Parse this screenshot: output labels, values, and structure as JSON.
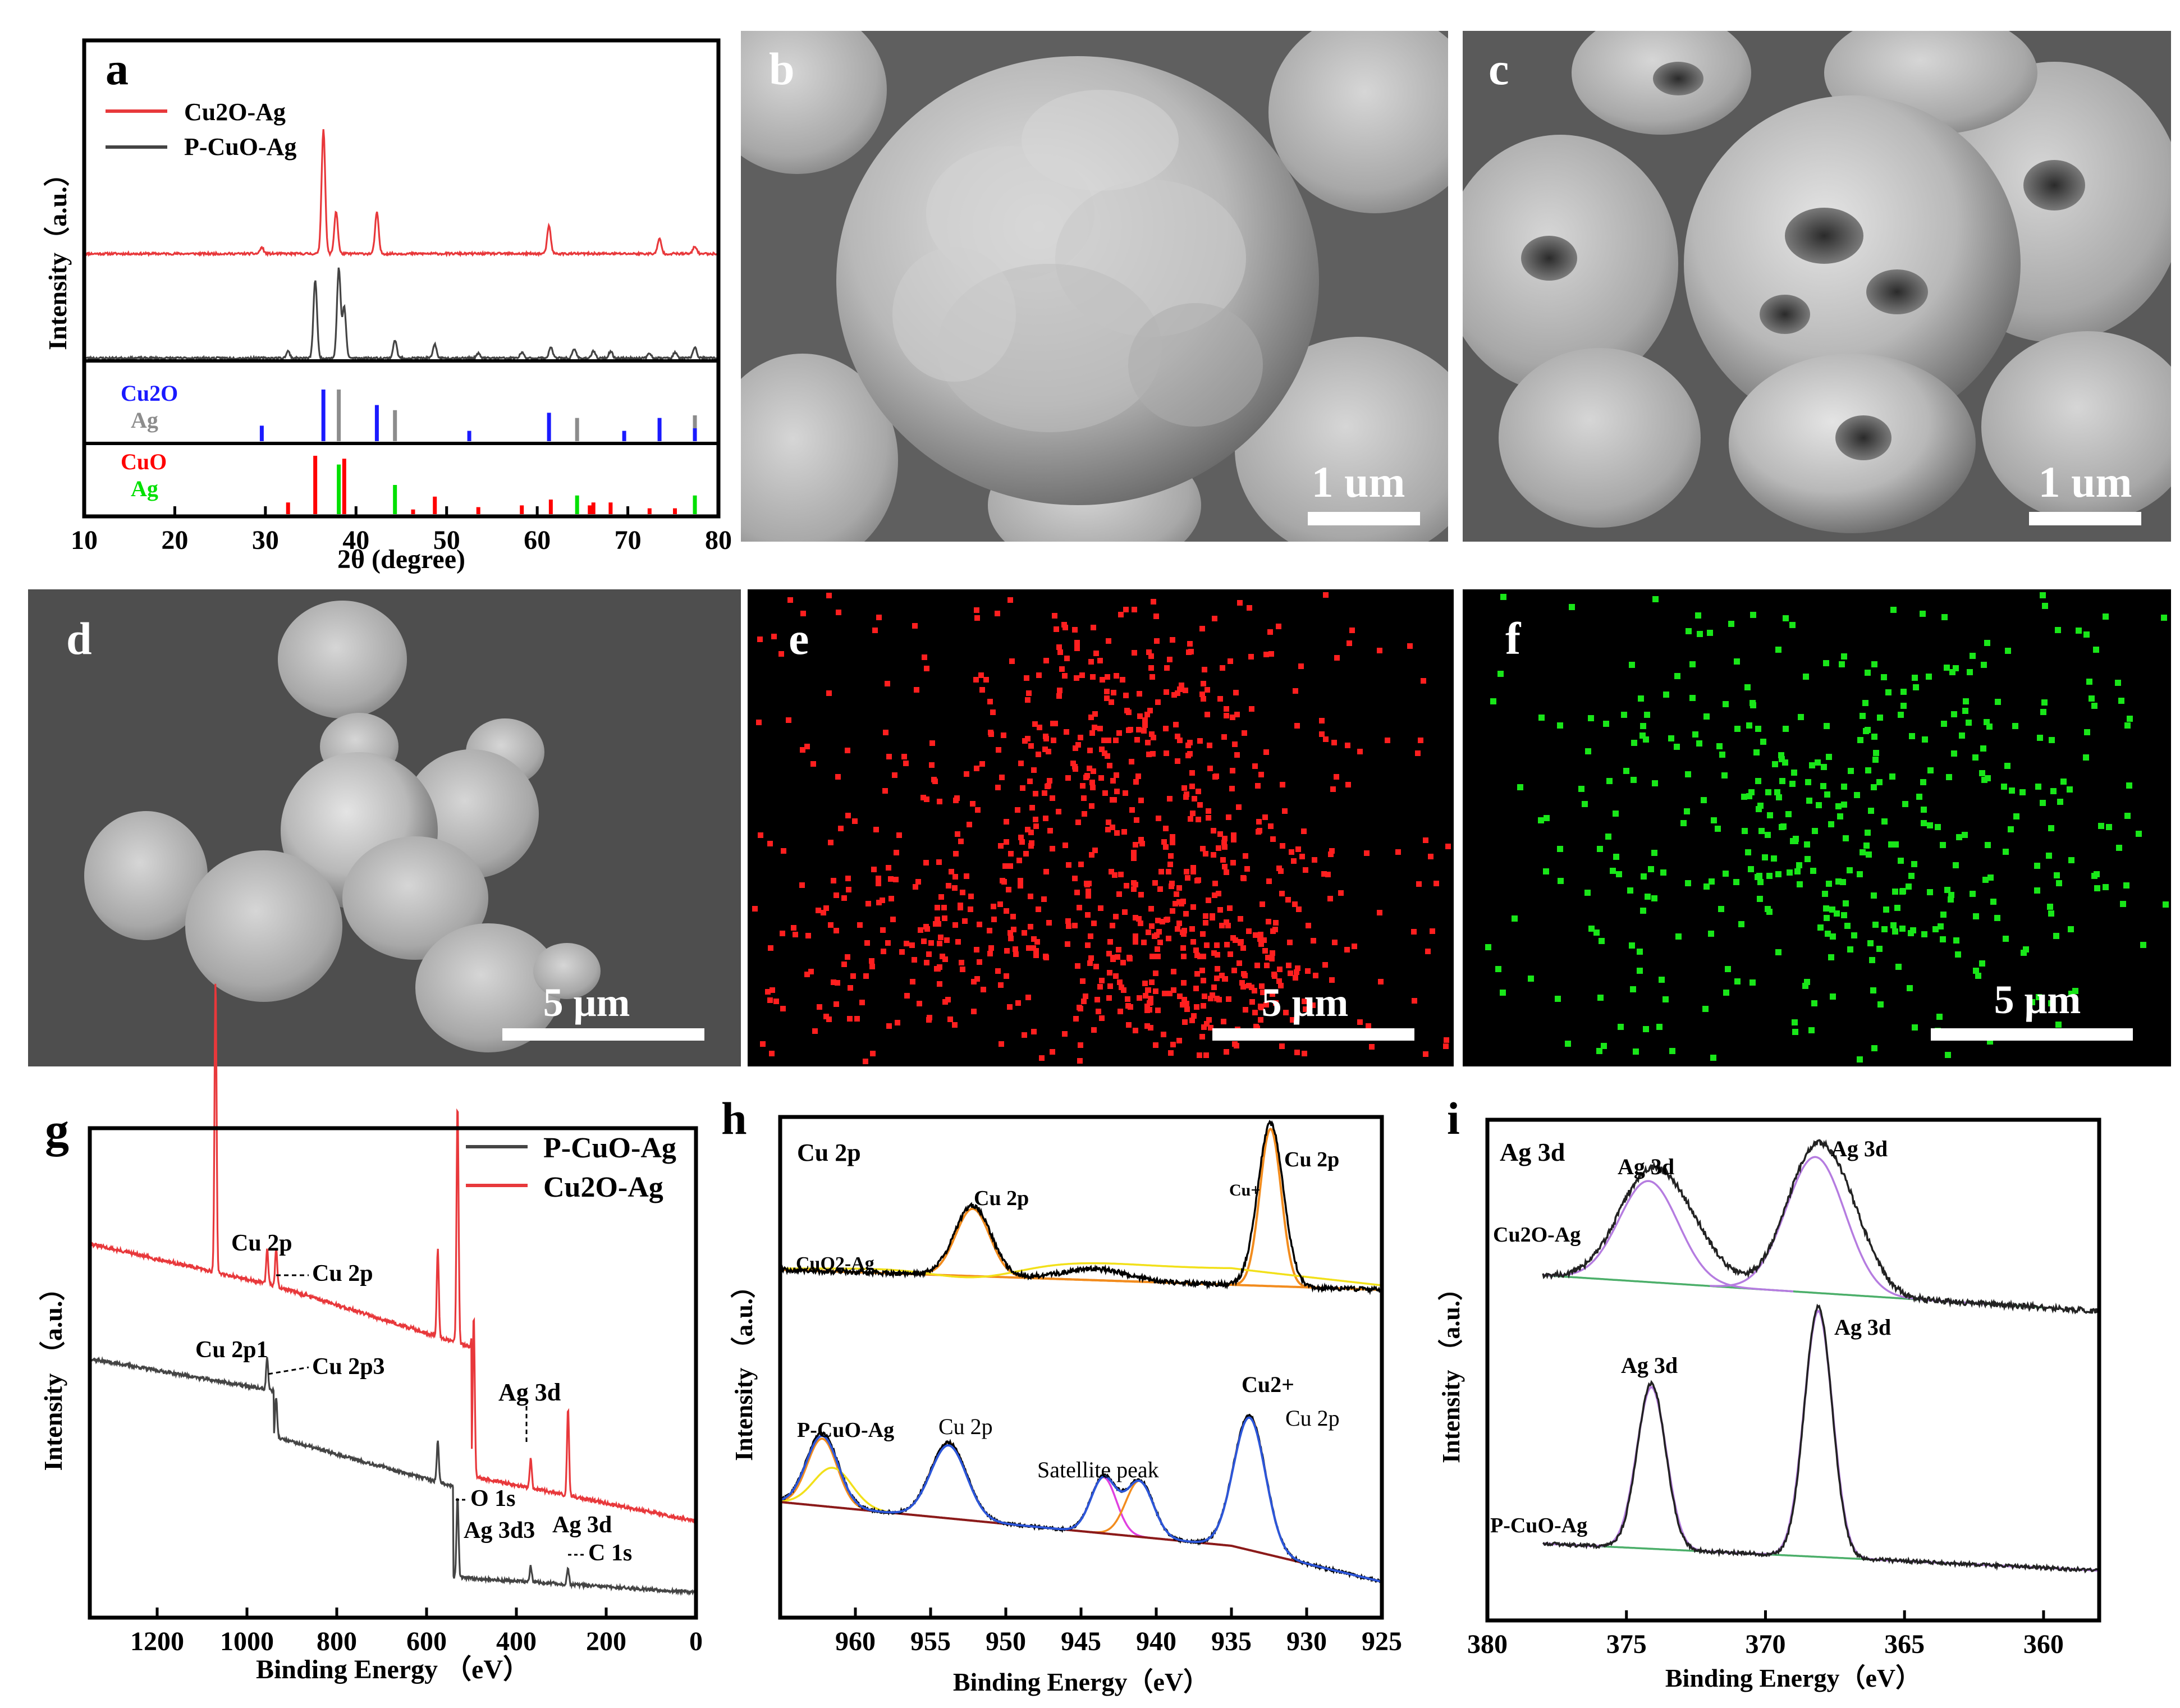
{
  "figure": {
    "panel_letters": {
      "a": "a",
      "b": "b",
      "c": "c",
      "d": "d",
      "e": "e",
      "f": "f",
      "g": "g",
      "h": "h",
      "i": "i"
    },
    "scale_bars": {
      "b": "1 um",
      "c": "1 um",
      "d": "5 μm",
      "e": "5 μm",
      "f": "5 μm"
    },
    "colors": {
      "cu2o_ag_line": "#e8383b",
      "pcuo_ag_line": "#444444",
      "ref_cu2o": "#1a1aff",
      "ref_ag_top": "#8c8c8c",
      "ref_cuo": "#ff0000",
      "ref_ag_bottom": "#00e000",
      "eds_cu": "#ff1f1f",
      "eds_ag": "#19e619",
      "fit_orange": "#f28c1e",
      "fit_yellow": "#f2e01a",
      "fit_blue": "#2c56d9",
      "fit_magenta": "#e040e0",
      "background_dark_red": "#8b1a1a",
      "fit_purple": "#b57ce0",
      "baseline_green": "#4caf6a"
    }
  },
  "chart_data": [
    {
      "panel": "a",
      "type": "line",
      "xlabel": "2θ (degree)",
      "ylabel": "Intensity（a.u.）",
      "xlim": [
        10,
        80
      ],
      "xticks": [
        10,
        20,
        30,
        40,
        50,
        60,
        70,
        80
      ],
      "legend": [
        "Cu2O-Ag",
        "P-CuO-Ag"
      ],
      "series": [
        {
          "name": "Cu2O-Ag",
          "peaks_2theta": [
            29.6,
            36.4,
            37.8,
            42.3,
            61.3,
            73.5,
            77.4
          ],
          "peak_rel": [
            0.05,
            1.0,
            0.34,
            0.33,
            0.22,
            0.12,
            0.06
          ]
        },
        {
          "name": "P-CuO-Ag",
          "peaks_2theta": [
            32.5,
            35.5,
            38.1,
            38.7,
            44.3,
            48.7,
            53.5,
            58.3,
            61.5,
            64.1,
            66.2,
            68.1,
            72.4,
            75.2,
            77.4
          ],
          "peak_rel": [
            0.06,
            0.7,
            0.8,
            0.45,
            0.16,
            0.12,
            0.04,
            0.05,
            0.1,
            0.08,
            0.06,
            0.06,
            0.04,
            0.05,
            0.1
          ]
        }
      ],
      "reference_top": {
        "labels": [
          "Cu2O",
          "Ag"
        ],
        "Cu2O": [
          29.6,
          36.4,
          42.3,
          52.5,
          61.3,
          69.6,
          73.5,
          77.4
        ],
        "Cu2O_rel": [
          0.3,
          1.0,
          0.7,
          0.2,
          0.55,
          0.2,
          0.45,
          0.25
        ],
        "Ag": [
          38.1,
          44.3,
          64.4,
          77.4
        ],
        "Ag_rel": [
          1.0,
          0.6,
          0.45,
          0.5
        ]
      },
      "reference_bottom": {
        "labels": [
          "CuO",
          "Ag"
        ],
        "CuO": [
          32.5,
          35.5,
          38.7,
          46.3,
          48.7,
          53.5,
          58.3,
          61.5,
          65.8,
          66.2,
          68.1,
          72.4,
          75.2
        ],
        "CuO_rel": [
          0.2,
          1.0,
          0.95,
          0.08,
          0.3,
          0.12,
          0.15,
          0.25,
          0.15,
          0.2,
          0.2,
          0.1,
          0.1
        ],
        "Ag": [
          38.1,
          44.3,
          64.4,
          77.4
        ],
        "Ag_rel": [
          0.85,
          0.5,
          0.32,
          0.32
        ]
      }
    },
    {
      "panel": "g",
      "type": "line",
      "xlabel": "Binding Energy （eV）",
      "ylabel": "Intensity （a.u.）",
      "xlim": [
        1350,
        0
      ],
      "xticks": [
        1200,
        1000,
        800,
        600,
        400,
        200,
        0
      ],
      "legend": [
        "P-CuO-Ag",
        "Cu2O-Ag"
      ],
      "annotations": {
        "cu_2p_a": "Cu 2p",
        "cu_2p_b": "Cu 2p",
        "cu_2p1": "Cu 2p1",
        "cu_2p3": "Cu 2p3",
        "ag_3d_top": "Ag 3d",
        "o_1s": "O 1s",
        "ag_3d3": "Ag 3d3",
        "ag_3d_bottom": "Ag 3d",
        "c_1s": "C 1s"
      },
      "series": [
        {
          "name": "Cu2O-Ag",
          "peaks_ev": [
            1070,
            955,
            935,
            575,
            531,
            495,
            368,
            285
          ],
          "peak_rel": [
            1.0,
            0.12,
            0.13,
            0.3,
            0.82,
            0.55,
            0.1,
            0.3
          ]
        },
        {
          "name": "P-CuO-Ag",
          "peaks_ev": [
            955,
            935,
            575,
            531,
            368,
            285
          ],
          "peak_rel": [
            0.12,
            0.15,
            0.15,
            0.3,
            0.06,
            0.06
          ]
        }
      ]
    },
    {
      "panel": "h",
      "type": "line",
      "title": "Cu 2p",
      "xlabel": "Binding Energy（eV）",
      "ylabel": "Intensity （a.u.）",
      "xlim": [
        965,
        925
      ],
      "xticks": [
        960,
        955,
        950,
        945,
        940,
        935,
        930,
        925
      ],
      "annotations": {
        "top_sample": "CuO2-Ag",
        "top_peak_1": "Cu 2p",
        "top_peak_2": "Cu 2p",
        "top_state": "Cu+",
        "bottom_sample": "P-CuO-Ag",
        "bottom_peak_1": "Cu 2p",
        "bottom_peak_2": "Cu 2p",
        "satellite": "Satellite peak",
        "bottom_state": "Cu2+"
      },
      "series": [
        {
          "name": "CuO2-Ag",
          "peaks_ev": [
            952.2,
            932.4
          ]
        },
        {
          "name": "P-CuO-Ag",
          "peaks_ev": [
            962.2,
            953.8,
            943.5,
            941.1,
            933.8
          ]
        }
      ]
    },
    {
      "panel": "i",
      "type": "line",
      "title": "Ag 3d",
      "xlabel": "Binding Energy（eV）",
      "ylabel": "Intensity （a.u.）",
      "xlim": [
        380,
        358
      ],
      "xticks": [
        380,
        375,
        370,
        365,
        360
      ],
      "annotations": {
        "top_sample": "Cu2O-Ag",
        "top_peak_1": "Ag 3d",
        "top_peak_2": "Ag 3d",
        "bottom_sample": "P-CuO-Ag",
        "bottom_peak_1": "Ag 3d",
        "bottom_peak_2": "Ag 3d"
      },
      "series": [
        {
          "name": "Cu2O-Ag",
          "peaks_ev": [
            374.2,
            368.2
          ]
        },
        {
          "name": "P-CuO-Ag",
          "peaks_ev": [
            374.1,
            368.1
          ]
        }
      ]
    }
  ]
}
